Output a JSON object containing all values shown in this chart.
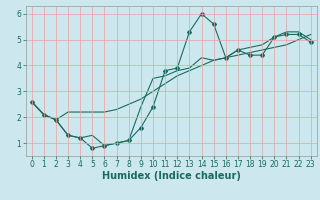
{
  "title": "",
  "xlabel": "Humidex (Indice chaleur)",
  "bg_color": "#cce8ee",
  "line_color": "#1a6b5e",
  "grid_color": "#e8a0a0",
  "xlim": [
    -0.5,
    23.5
  ],
  "ylim": [
    0.5,
    6.3
  ],
  "xticks": [
    0,
    1,
    2,
    3,
    4,
    5,
    6,
    7,
    8,
    9,
    10,
    11,
    12,
    13,
    14,
    15,
    16,
    17,
    18,
    19,
    20,
    21,
    22,
    23
  ],
  "yticks": [
    1,
    2,
    3,
    4,
    5,
    6
  ],
  "line1_x": [
    0,
    1,
    2,
    3,
    4,
    5,
    6,
    7,
    8,
    9,
    10,
    11,
    12,
    13,
    14,
    15,
    16,
    17,
    18,
    19,
    20,
    21,
    22,
    23
  ],
  "line1_y": [
    2.6,
    2.1,
    1.9,
    1.3,
    1.2,
    0.8,
    0.9,
    1.0,
    1.1,
    1.6,
    2.4,
    3.8,
    3.9,
    5.3,
    6.0,
    5.6,
    4.3,
    4.6,
    4.4,
    4.4,
    5.1,
    5.2,
    5.2,
    4.9
  ],
  "line2_x": [
    0,
    1,
    2,
    3,
    4,
    5,
    6,
    7,
    8,
    9,
    10,
    11,
    12,
    13,
    14,
    15,
    16,
    17,
    18,
    19,
    20,
    21,
    22,
    23
  ],
  "line2_y": [
    2.6,
    2.1,
    1.9,
    2.2,
    2.2,
    2.2,
    2.2,
    2.3,
    2.5,
    2.7,
    3.0,
    3.3,
    3.6,
    3.8,
    4.0,
    4.2,
    4.3,
    4.4,
    4.5,
    4.6,
    4.7,
    4.8,
    5.0,
    5.2
  ],
  "line3_x": [
    0,
    1,
    2,
    3,
    4,
    5,
    6,
    7,
    8,
    9,
    10,
    11,
    12,
    13,
    14,
    15,
    16,
    17,
    18,
    19,
    20,
    21,
    22,
    23
  ],
  "line3_y": [
    2.6,
    2.1,
    1.9,
    1.3,
    1.2,
    1.3,
    0.9,
    1.0,
    1.1,
    2.4,
    3.5,
    3.6,
    3.8,
    3.9,
    4.3,
    4.2,
    4.3,
    4.6,
    4.7,
    4.8,
    5.1,
    5.3,
    5.3,
    5.0
  ],
  "tick_fontsize": 5.5,
  "xlabel_fontsize": 7,
  "marker": "D",
  "markersize": 2,
  "linewidth": 0.8
}
